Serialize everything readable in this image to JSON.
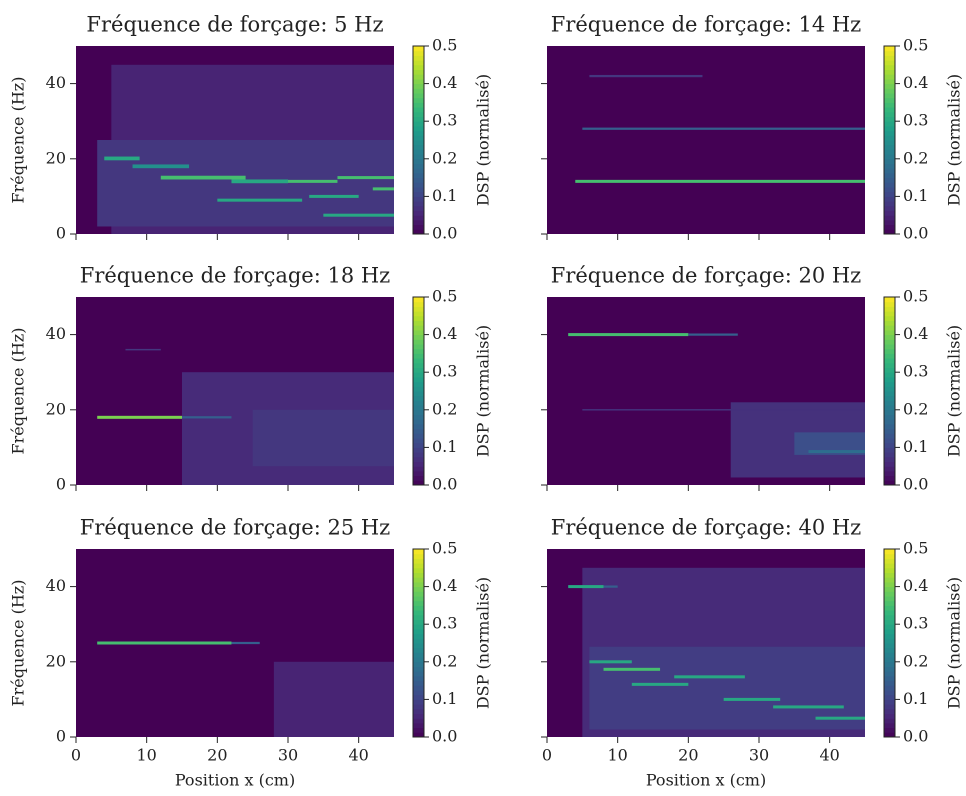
{
  "chart_data": [
    {
      "type": "heatmap",
      "title": "Fréquence de forçage: 5 Hz",
      "ylabel": "Fréquence (Hz)",
      "colorbar_label": "DSP (normalisé)",
      "cmap": "viridis",
      "xlim": [
        0,
        45
      ],
      "ylim": [
        0,
        50
      ],
      "xticks": [
        0,
        10,
        20,
        30,
        40
      ],
      "yticks": [
        0,
        20,
        40
      ],
      "clim": [
        0,
        0.5
      ],
      "cticks": [
        {
          "value": 0,
          "label": "0.0"
        },
        0.1,
        0.2,
        0.3,
        0.4,
        0.5
      ],
      "segments": [
        {
          "x": [
            5,
            45
          ],
          "y": [
            0,
            45
          ],
          "value": 0.05
        },
        {
          "x": [
            3,
            45
          ],
          "y": [
            2,
            25
          ],
          "value": 0.08
        },
        {
          "x": [
            4,
            9
          ],
          "y": [
            19.6,
            20.6
          ],
          "value": 0.3
        },
        {
          "x": [
            8,
            16
          ],
          "y": [
            17.5,
            18.5
          ],
          "value": 0.25
        },
        {
          "x": [
            12,
            24
          ],
          "y": [
            14.5,
            15.5
          ],
          "value": 0.35
        },
        {
          "x": [
            22,
            30
          ],
          "y": [
            13.5,
            14.5
          ],
          "value": 0.3
        },
        {
          "x": [
            30,
            37
          ],
          "y": [
            13.6,
            14.4
          ],
          "value": 0.35
        },
        {
          "x": [
            37,
            45
          ],
          "y": [
            14.6,
            15.4
          ],
          "value": 0.35
        },
        {
          "x": [
            20,
            32
          ],
          "y": [
            8.6,
            9.4
          ],
          "value": 0.3
        },
        {
          "x": [
            33,
            40
          ],
          "y": [
            9.6,
            10.4
          ],
          "value": 0.3
        },
        {
          "x": [
            35,
            45
          ],
          "y": [
            4.6,
            5.4
          ],
          "value": 0.3
        },
        {
          "x": [
            42,
            45
          ],
          "y": [
            11.6,
            12.4
          ],
          "value": 0.35
        }
      ]
    },
    {
      "type": "heatmap",
      "title": "Fréquence de forçage: 14 Hz",
      "colorbar_label": "DSP (normalisé)",
      "cmap": "viridis",
      "xlim": [
        0,
        45
      ],
      "ylim": [
        0,
        50
      ],
      "xticks": [
        0,
        10,
        20,
        30,
        40
      ],
      "yticks": [
        0,
        20,
        40
      ],
      "clim": [
        0,
        0.5
      ],
      "cticks": [
        {
          "value": 0,
          "label": "0.0"
        },
        0.1,
        0.2,
        0.3,
        0.4,
        0.5
      ],
      "segments": [
        {
          "x": [
            4,
            45
          ],
          "y": [
            13.6,
            14.4
          ],
          "value": 0.35
        },
        {
          "x": [
            5,
            45
          ],
          "y": [
            27.7,
            28.3
          ],
          "value": 0.15
        },
        {
          "x": [
            6,
            22
          ],
          "y": [
            41.7,
            42.3
          ],
          "value": 0.08
        }
      ]
    },
    {
      "type": "heatmap",
      "title": "Fréquence de forçage: 18 Hz",
      "ylabel": "Fréquence (Hz)",
      "colorbar_label": "DSP (normalisé)",
      "cmap": "viridis",
      "xlim": [
        0,
        45
      ],
      "ylim": [
        0,
        50
      ],
      "xticks": [
        0,
        10,
        20,
        30,
        40
      ],
      "yticks": [
        0,
        20,
        40
      ],
      "clim": [
        0,
        0.5
      ],
      "cticks": [
        {
          "value": 0,
          "label": "0.0"
        },
        0.1,
        0.2,
        0.3,
        0.4,
        0.5
      ],
      "segments": [
        {
          "x": [
            15,
            45
          ],
          "y": [
            0,
            30
          ],
          "value": 0.06
        },
        {
          "x": [
            25,
            45
          ],
          "y": [
            5,
            20
          ],
          "value": 0.08
        },
        {
          "x": [
            3,
            15
          ],
          "y": [
            17.6,
            18.4
          ],
          "value": 0.4
        },
        {
          "x": [
            15,
            22
          ],
          "y": [
            17.7,
            18.3
          ],
          "value": 0.15
        },
        {
          "x": [
            7,
            12
          ],
          "y": [
            35.8,
            36.2
          ],
          "value": 0.08
        }
      ]
    },
    {
      "type": "heatmap",
      "title": "Fréquence de forçage: 20 Hz",
      "colorbar_label": "DSP (normalisé)",
      "cmap": "viridis",
      "xlim": [
        0,
        45
      ],
      "ylim": [
        0,
        50
      ],
      "xticks": [
        0,
        10,
        20,
        30,
        40
      ],
      "yticks": [
        0,
        20,
        40
      ],
      "clim": [
        0,
        0.5
      ],
      "cticks": [
        {
          "value": 0,
          "label": "0.0"
        },
        0.1,
        0.2,
        0.3,
        0.4,
        0.5
      ],
      "segments": [
        {
          "x": [
            26,
            45
          ],
          "y": [
            2,
            22
          ],
          "value": 0.07
        },
        {
          "x": [
            35,
            45
          ],
          "y": [
            8,
            14
          ],
          "value": 0.12
        },
        {
          "x": [
            37,
            45
          ],
          "y": [
            8.5,
            9.3
          ],
          "value": 0.18
        },
        {
          "x": [
            3,
            20
          ],
          "y": [
            39.6,
            40.4
          ],
          "value": 0.35
        },
        {
          "x": [
            20,
            27
          ],
          "y": [
            39.7,
            40.3
          ],
          "value": 0.15
        },
        {
          "x": [
            5,
            45
          ],
          "y": [
            19.8,
            20.2
          ],
          "value": 0.07
        }
      ]
    },
    {
      "type": "heatmap",
      "title": "Fréquence de forçage: 25 Hz",
      "ylabel": "Fréquence (Hz)",
      "xlabel": "Position x (cm)",
      "colorbar_label": "DSP (normalisé)",
      "cmap": "viridis",
      "xlim": [
        0,
        45
      ],
      "ylim": [
        0,
        50
      ],
      "xticks": [
        0,
        10,
        20,
        30,
        40
      ],
      "yticks": [
        0,
        20,
        40
      ],
      "clim": [
        0,
        0.5
      ],
      "cticks": [
        {
          "value": 0,
          "label": "0.0"
        },
        0.1,
        0.2,
        0.3,
        0.4,
        0.5
      ],
      "segments": [
        {
          "x": [
            28,
            45
          ],
          "y": [
            0,
            20
          ],
          "value": 0.05
        },
        {
          "x": [
            3,
            22
          ],
          "y": [
            24.6,
            25.4
          ],
          "value": 0.35
        },
        {
          "x": [
            22,
            26
          ],
          "y": [
            24.7,
            25.3
          ],
          "value": 0.15
        }
      ]
    },
    {
      "type": "heatmap",
      "title": "Fréquence de forçage: 40 Hz",
      "xlabel": "Position x (cm)",
      "colorbar_label": "DSP (normalisé)",
      "cmap": "viridis",
      "xlim": [
        0,
        45
      ],
      "ylim": [
        0,
        50
      ],
      "xticks": [
        0,
        10,
        20,
        30,
        40
      ],
      "yticks": [
        0,
        20,
        40
      ],
      "clim": [
        0,
        0.5
      ],
      "cticks": [
        {
          "value": 0,
          "label": "0.0"
        },
        0.1,
        0.2,
        0.3,
        0.4,
        0.5
      ],
      "segments": [
        {
          "x": [
            5,
            45
          ],
          "y": [
            0,
            45
          ],
          "value": 0.06
        },
        {
          "x": [
            6,
            45
          ],
          "y": [
            2,
            24
          ],
          "value": 0.09
        },
        {
          "x": [
            3,
            8
          ],
          "y": [
            39.6,
            40.4
          ],
          "value": 0.3
        },
        {
          "x": [
            8,
            10
          ],
          "y": [
            39.7,
            40.3
          ],
          "value": 0.15
        },
        {
          "x": [
            6,
            12
          ],
          "y": [
            19.6,
            20.4
          ],
          "value": 0.3
        },
        {
          "x": [
            8,
            16
          ],
          "y": [
            17.6,
            18.4
          ],
          "value": 0.35
        },
        {
          "x": [
            12,
            20
          ],
          "y": [
            13.6,
            14.4
          ],
          "value": 0.3
        },
        {
          "x": [
            18,
            28
          ],
          "y": [
            15.6,
            16.4
          ],
          "value": 0.3
        },
        {
          "x": [
            25,
            33
          ],
          "y": [
            9.6,
            10.4
          ],
          "value": 0.3
        },
        {
          "x": [
            32,
            42
          ],
          "y": [
            7.6,
            8.4
          ],
          "value": 0.3
        },
        {
          "x": [
            38,
            45
          ],
          "y": [
            4.6,
            5.4
          ],
          "value": 0.3
        }
      ]
    }
  ]
}
